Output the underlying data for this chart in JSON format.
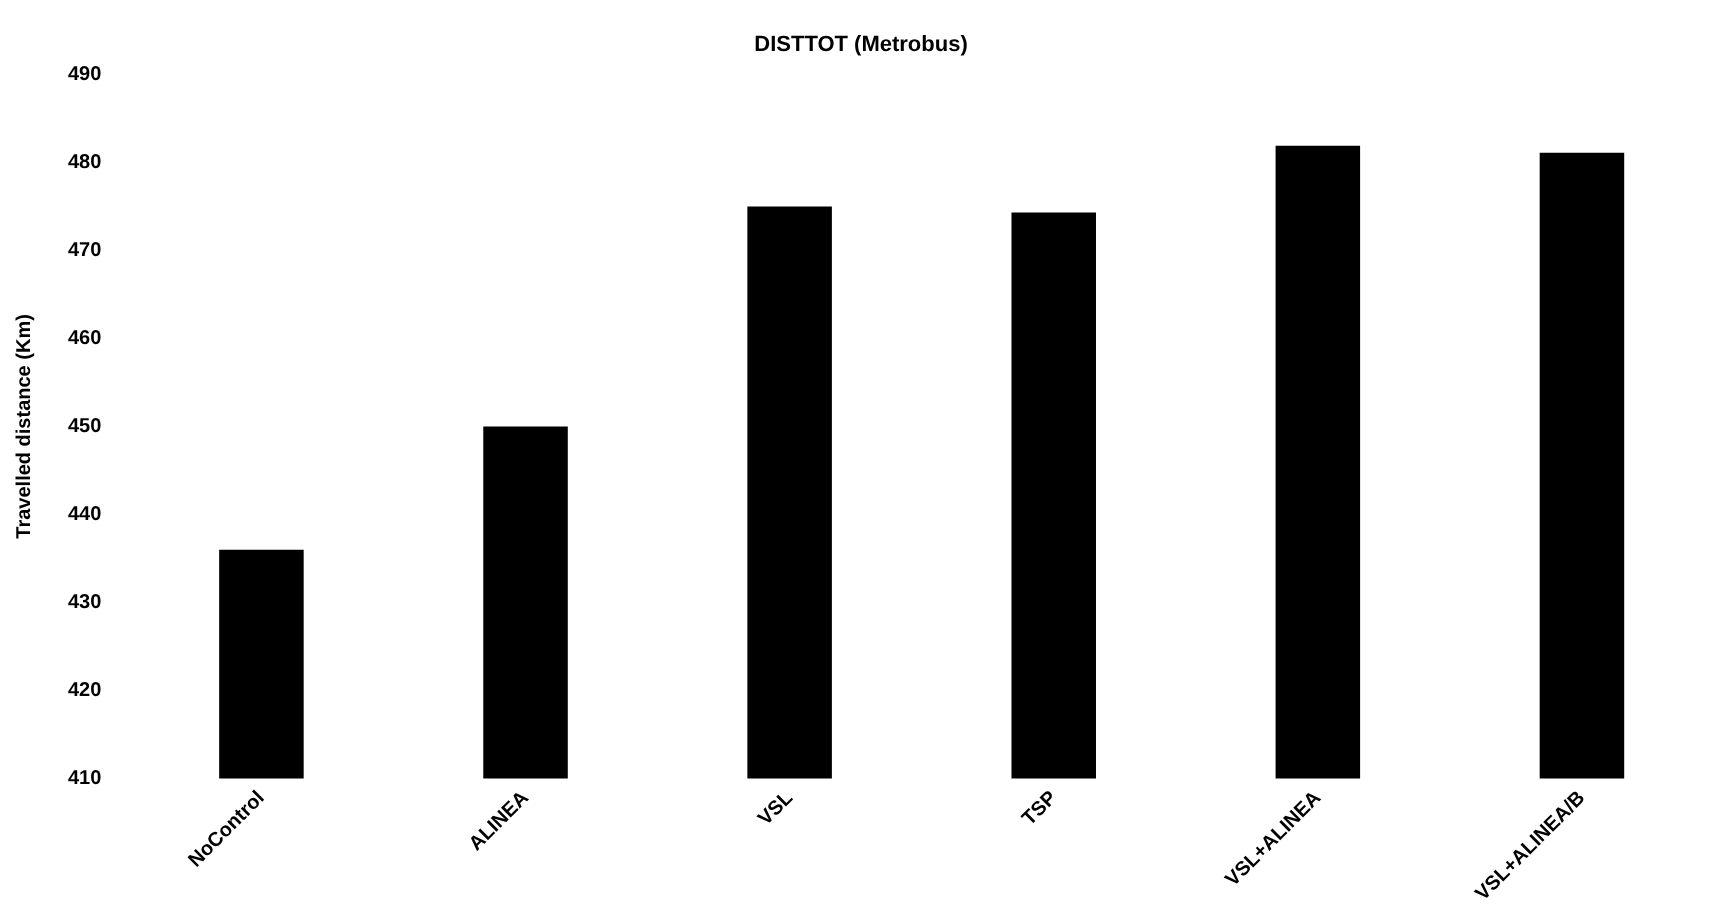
{
  "chart_data": {
    "type": "bar",
    "title": "DISTTOT (Metrobus)",
    "ylabel": "Travelled distance (Km)",
    "categories": [
      "NoControl",
      "ALINEA",
      "VSL",
      "TSP",
      "VSL+ALINEA",
      "VSL+ALINEA/B"
    ],
    "values": [
      436,
      450,
      475,
      474.3,
      481.9,
      481.1
    ],
    "color": "#000000",
    "ylim": [
      410,
      490
    ],
    "yticks": [
      410,
      420,
      430,
      440,
      450,
      460,
      470,
      480,
      490
    ],
    "grid": false,
    "legend": false
  }
}
